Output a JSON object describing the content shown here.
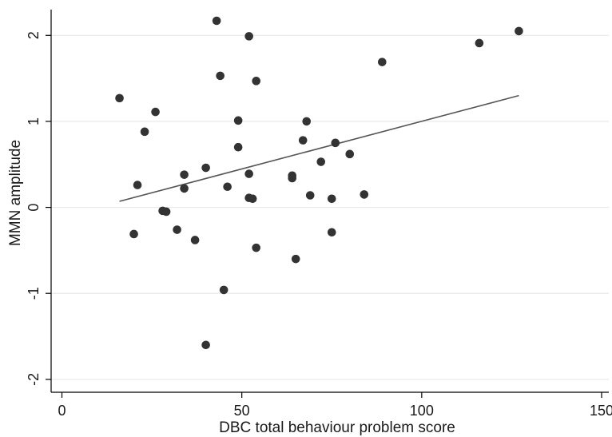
{
  "chart_data": {
    "type": "scatter",
    "title": "",
    "xlabel": "DBC total behaviour problem score",
    "ylabel": "MMN amplitude",
    "xlim": [
      -3,
      152
    ],
    "ylim": [
      -2.15,
      2.3
    ],
    "xticks": [
      0,
      50,
      100,
      150
    ],
    "xtick_labels": [
      "0",
      "50",
      "100",
      "150"
    ],
    "yticks": [
      -2,
      -1,
      0,
      1,
      2
    ],
    "ytick_labels": [
      "-2",
      "-1",
      "0",
      "1",
      "2"
    ],
    "grid": "horizontal",
    "legend": "none",
    "colors": {
      "point": "#333333",
      "fit_line": "#555555",
      "grid": "#e8e8e8",
      "axis": "#000000"
    },
    "points": [
      {
        "x": 16,
        "y": 1.27
      },
      {
        "x": 20,
        "y": -0.31
      },
      {
        "x": 21,
        "y": 0.26
      },
      {
        "x": 23,
        "y": 0.88
      },
      {
        "x": 26,
        "y": 1.11
      },
      {
        "x": 28,
        "y": -0.04
      },
      {
        "x": 29,
        "y": -0.05
      },
      {
        "x": 32,
        "y": -0.26
      },
      {
        "x": 34,
        "y": 0.22
      },
      {
        "x": 34,
        "y": 0.38
      },
      {
        "x": 37,
        "y": -0.38
      },
      {
        "x": 40,
        "y": 0.46
      },
      {
        "x": 40,
        "y": -1.6
      },
      {
        "x": 43,
        "y": 2.17
      },
      {
        "x": 44,
        "y": 1.53
      },
      {
        "x": 45,
        "y": -0.96
      },
      {
        "x": 46,
        "y": 0.24
      },
      {
        "x": 49,
        "y": 1.01
      },
      {
        "x": 49,
        "y": 0.7
      },
      {
        "x": 52,
        "y": 1.99
      },
      {
        "x": 52,
        "y": 0.39
      },
      {
        "x": 52,
        "y": 0.11
      },
      {
        "x": 53,
        "y": 0.1
      },
      {
        "x": 54,
        "y": 1.47
      },
      {
        "x": 54,
        "y": -0.47
      },
      {
        "x": 64,
        "y": 0.37
      },
      {
        "x": 64,
        "y": 0.34
      },
      {
        "x": 65,
        "y": -0.6
      },
      {
        "x": 67,
        "y": 0.78
      },
      {
        "x": 68,
        "y": 1.0
      },
      {
        "x": 69,
        "y": 0.14
      },
      {
        "x": 72,
        "y": 0.53
      },
      {
        "x": 75,
        "y": 0.1
      },
      {
        "x": 75,
        "y": -0.29
      },
      {
        "x": 76,
        "y": 0.75
      },
      {
        "x": 80,
        "y": 0.62
      },
      {
        "x": 84,
        "y": 0.15
      },
      {
        "x": 89,
        "y": 1.69
      },
      {
        "x": 116,
        "y": 1.91
      },
      {
        "x": 127,
        "y": 2.05
      }
    ],
    "fit_line": {
      "x": [
        16,
        127
      ],
      "y": [
        0.07,
        1.3
      ]
    }
  }
}
